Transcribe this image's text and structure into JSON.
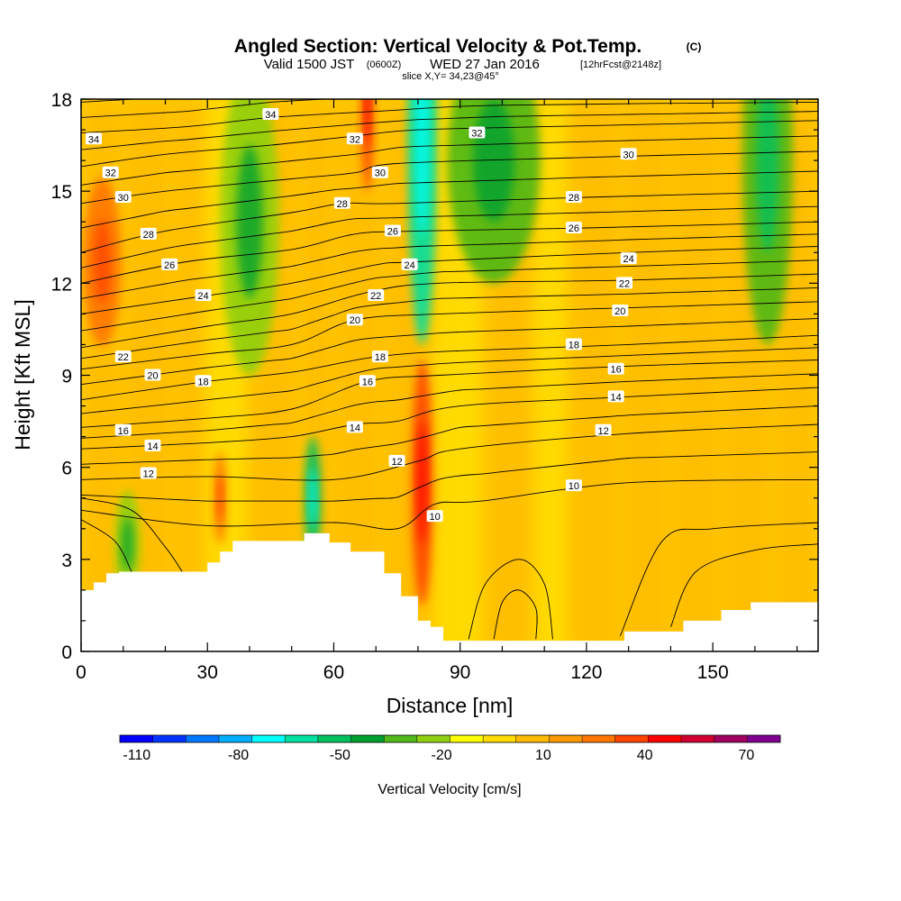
{
  "title": "Angled Section: Vertical Velocity & Pot.Temp.",
  "title_unit": "(C)",
  "subtitle": {
    "valid": "Valid 1500 JST",
    "utc": "(0600Z)",
    "date": "WED 27 Jan 2016",
    "fcst": "[12hrFcst@2148z]"
  },
  "slice_label": "slice X,Y= 34,23@45°",
  "chart_data": {
    "type": "heatmap",
    "xlabel": "Distance [nm]",
    "ylabel": "Height [Kft MSL]",
    "xlim": [
      0,
      175
    ],
    "ylim": [
      0,
      18
    ],
    "x_ticks": [
      0,
      30,
      60,
      90,
      120,
      150
    ],
    "y_ticks": [
      0,
      3,
      6,
      9,
      12,
      15,
      18
    ],
    "terrain": {
      "x": [
        0,
        3,
        3,
        6,
        6,
        9,
        9,
        30,
        30,
        33,
        33,
        36,
        36,
        53,
        53,
        59,
        59,
        64,
        64,
        72,
        72,
        76,
        76,
        80,
        80,
        83,
        83,
        86,
        86,
        95,
        95,
        129,
        129,
        143,
        143,
        152,
        152,
        159,
        159,
        175
      ],
      "y": [
        2.0,
        2.0,
        2.25,
        2.25,
        2.55,
        2.55,
        2.6,
        2.6,
        2.9,
        2.9,
        3.25,
        3.25,
        3.6,
        3.6,
        3.85,
        3.85,
        3.55,
        3.55,
        3.25,
        3.25,
        2.55,
        2.55,
        1.8,
        1.8,
        1.0,
        1.0,
        0.8,
        0.8,
        0.35,
        0.35,
        0.35,
        0.35,
        0.65,
        0.65,
        1.0,
        1.0,
        1.35,
        1.35,
        1.6,
        1.6
      ]
    },
    "theta_contours": [
      {
        "label": "10",
        "x": [
          0,
          30,
          60,
          75,
          84,
          95,
          130,
          175
        ],
        "y": [
          4.6,
          4.1,
          4.2,
          4.0,
          4.8,
          4.9,
          5.5,
          5.6
        ]
      },
      {
        "label": "12",
        "x": [
          0,
          30,
          60,
          80,
          90,
          130,
          175
        ],
        "y": [
          5.6,
          5.7,
          5.6,
          6.2,
          6.6,
          7.1,
          7.4
        ]
      },
      {
        "label": "14",
        "x": [
          0,
          30,
          50,
          65,
          75,
          90,
          130,
          175
        ],
        "y": [
          6.6,
          6.8,
          7.0,
          7.4,
          7.5,
          8.0,
          8.3,
          8.6
        ]
      },
      {
        "label": "16",
        "x": [
          0,
          30,
          50,
          68,
          85,
          130,
          175
        ],
        "y": [
          7.3,
          7.6,
          7.9,
          8.8,
          9.0,
          9.3,
          9.5
        ]
      },
      {
        "label": "18",
        "x": [
          0,
          30,
          50,
          70,
          90,
          130,
          175
        ],
        "y": [
          8.2,
          8.8,
          9.1,
          9.6,
          9.8,
          10.0,
          10.3
        ]
      },
      {
        "label": "20",
        "x": [
          0,
          30,
          50,
          65,
          85,
          130,
          175
        ],
        "y": [
          9.2,
          9.7,
          10.0,
          10.8,
          11.0,
          11.2,
          11.4
        ]
      },
      {
        "label": "22",
        "x": [
          0,
          30,
          50,
          68,
          85,
          130,
          175
        ],
        "y": [
          9.9,
          10.6,
          11.0,
          11.7,
          12.0,
          12.1,
          12.3
        ]
      },
      {
        "label": "24",
        "x": [
          0,
          30,
          50,
          70,
          80,
          130,
          175
        ],
        "y": [
          11.0,
          11.6,
          12.0,
          12.6,
          12.7,
          13.0,
          13.2
        ]
      },
      {
        "label": "26",
        "x": [
          0,
          25,
          50,
          65,
          80,
          120,
          175
        ],
        "y": [
          12.0,
          12.7,
          13.1,
          13.6,
          13.7,
          13.8,
          14.0
        ]
      },
      {
        "label": "28",
        "x": [
          0,
          20,
          50,
          62,
          75,
          120,
          175
        ],
        "y": [
          13.0,
          13.7,
          14.3,
          14.6,
          14.6,
          14.8,
          15.0
        ]
      },
      {
        "label": "30",
        "x": [
          0,
          20,
          50,
          65,
          75,
          120,
          175
        ],
        "y": [
          14.6,
          15.0,
          15.4,
          15.6,
          15.9,
          16.1,
          16.3
        ]
      },
      {
        "label": "32",
        "x": [
          0,
          20,
          45,
          65,
          80,
          110,
          175
        ],
        "y": [
          15.8,
          16.2,
          16.5,
          16.8,
          17.0,
          17.1,
          17.3
        ]
      },
      {
        "label": "34",
        "x": [
          0,
          25,
          45,
          70,
          100,
          175
        ],
        "y": [
          16.9,
          17.1,
          17.4,
          17.6,
          17.8,
          17.9
        ]
      }
    ],
    "contour_labels": [
      {
        "text": "34",
        "x": 3,
        "y": 16.7
      },
      {
        "text": "34",
        "x": 45,
        "y": 17.5
      },
      {
        "text": "32",
        "x": 7,
        "y": 15.6
      },
      {
        "text": "32",
        "x": 65,
        "y": 16.7
      },
      {
        "text": "32",
        "x": 94,
        "y": 16.9
      },
      {
        "text": "30",
        "x": 10,
        "y": 14.8
      },
      {
        "text": "30",
        "x": 71,
        "y": 15.6
      },
      {
        "text": "30",
        "x": 130,
        "y": 16.2
      },
      {
        "text": "28",
        "x": 16,
        "y": 13.6
      },
      {
        "text": "28",
        "x": 62,
        "y": 14.6
      },
      {
        "text": "28",
        "x": 117,
        "y": 14.8
      },
      {
        "text": "26",
        "x": 21,
        "y": 12.6
      },
      {
        "text": "26",
        "x": 74,
        "y": 13.7
      },
      {
        "text": "26",
        "x": 117,
        "y": 13.8
      },
      {
        "text": "24",
        "x": 29,
        "y": 11.6
      },
      {
        "text": "24",
        "x": 78,
        "y": 12.6
      },
      {
        "text": "24",
        "x": 130,
        "y": 12.8
      },
      {
        "text": "22",
        "x": 10,
        "y": 9.6
      },
      {
        "text": "22",
        "x": 70,
        "y": 11.6
      },
      {
        "text": "22",
        "x": 129,
        "y": 12.0
      },
      {
        "text": "20",
        "x": 17,
        "y": 9.0
      },
      {
        "text": "20",
        "x": 65,
        "y": 10.8
      },
      {
        "text": "20",
        "x": 128,
        "y": 11.1
      },
      {
        "text": "18",
        "x": 29,
        "y": 8.8
      },
      {
        "text": "18",
        "x": 71,
        "y": 9.6
      },
      {
        "text": "18",
        "x": 117,
        "y": 10.0
      },
      {
        "text": "16",
        "x": 10,
        "y": 7.2
      },
      {
        "text": "16",
        "x": 68,
        "y": 8.8
      },
      {
        "text": "16",
        "x": 127,
        "y": 9.2
      },
      {
        "text": "14",
        "x": 17,
        "y": 6.7
      },
      {
        "text": "14",
        "x": 65,
        "y": 7.3
      },
      {
        "text": "14",
        "x": 127,
        "y": 8.3
      },
      {
        "text": "12",
        "x": 16,
        "y": 5.8
      },
      {
        "text": "12",
        "x": 75,
        "y": 6.2
      },
      {
        "text": "12",
        "x": 124,
        "y": 7.2
      },
      {
        "text": "10",
        "x": 84,
        "y": 4.4
      },
      {
        "text": "10",
        "x": 117,
        "y": 5.4
      }
    ],
    "velocity_features": [
      {
        "type": "downdraft",
        "x": 81,
        "y": 17,
        "w": 7,
        "h": 14,
        "value": -60
      },
      {
        "type": "downdraft",
        "x": 40,
        "y": 14,
        "w": 14,
        "h": 10,
        "value": -25
      },
      {
        "type": "downdraft",
        "x": 98,
        "y": 16,
        "w": 22,
        "h": 8,
        "value": -30
      },
      {
        "type": "downdraft",
        "x": 163,
        "y": 16,
        "w": 12,
        "h": 12,
        "value": -35
      },
      {
        "type": "downdraft",
        "x": 55,
        "y": 5.0,
        "w": 4,
        "h": 4,
        "value": -55
      },
      {
        "type": "downdraft",
        "x": 11,
        "y": 3.5,
        "w": 6,
        "h": 3.5,
        "value": -25
      },
      {
        "type": "updraft",
        "x": 5,
        "y": 12.7,
        "w": 9,
        "h": 5.5,
        "value": 25
      },
      {
        "type": "updraft",
        "x": 81,
        "y": 5.5,
        "w": 5,
        "h": 8,
        "value": 40
      },
      {
        "type": "updraft",
        "x": 68,
        "y": 18,
        "w": 3,
        "h": 6,
        "value": 40
      },
      {
        "type": "updraft",
        "x": 33,
        "y": 5.0,
        "w": 3,
        "h": 3,
        "value": 30
      }
    ],
    "colorbar": {
      "label": "Vertical Velocity [cm/s]",
      "min": -115,
      "max": 80,
      "step": 10,
      "ticks": [
        -110,
        -80,
        -50,
        -20,
        10,
        40,
        70
      ],
      "colors": [
        "#0000ff",
        "#0033ff",
        "#0077ff",
        "#00b0ff",
        "#00ffff",
        "#00e0a0",
        "#00c060",
        "#00a030",
        "#50b818",
        "#90d010",
        "#ffff00",
        "#ffdd00",
        "#ffbb00",
        "#ff9900",
        "#ff7700",
        "#ff4400",
        "#ff0000",
        "#d00030",
        "#a00060",
        "#800090"
      ]
    }
  }
}
